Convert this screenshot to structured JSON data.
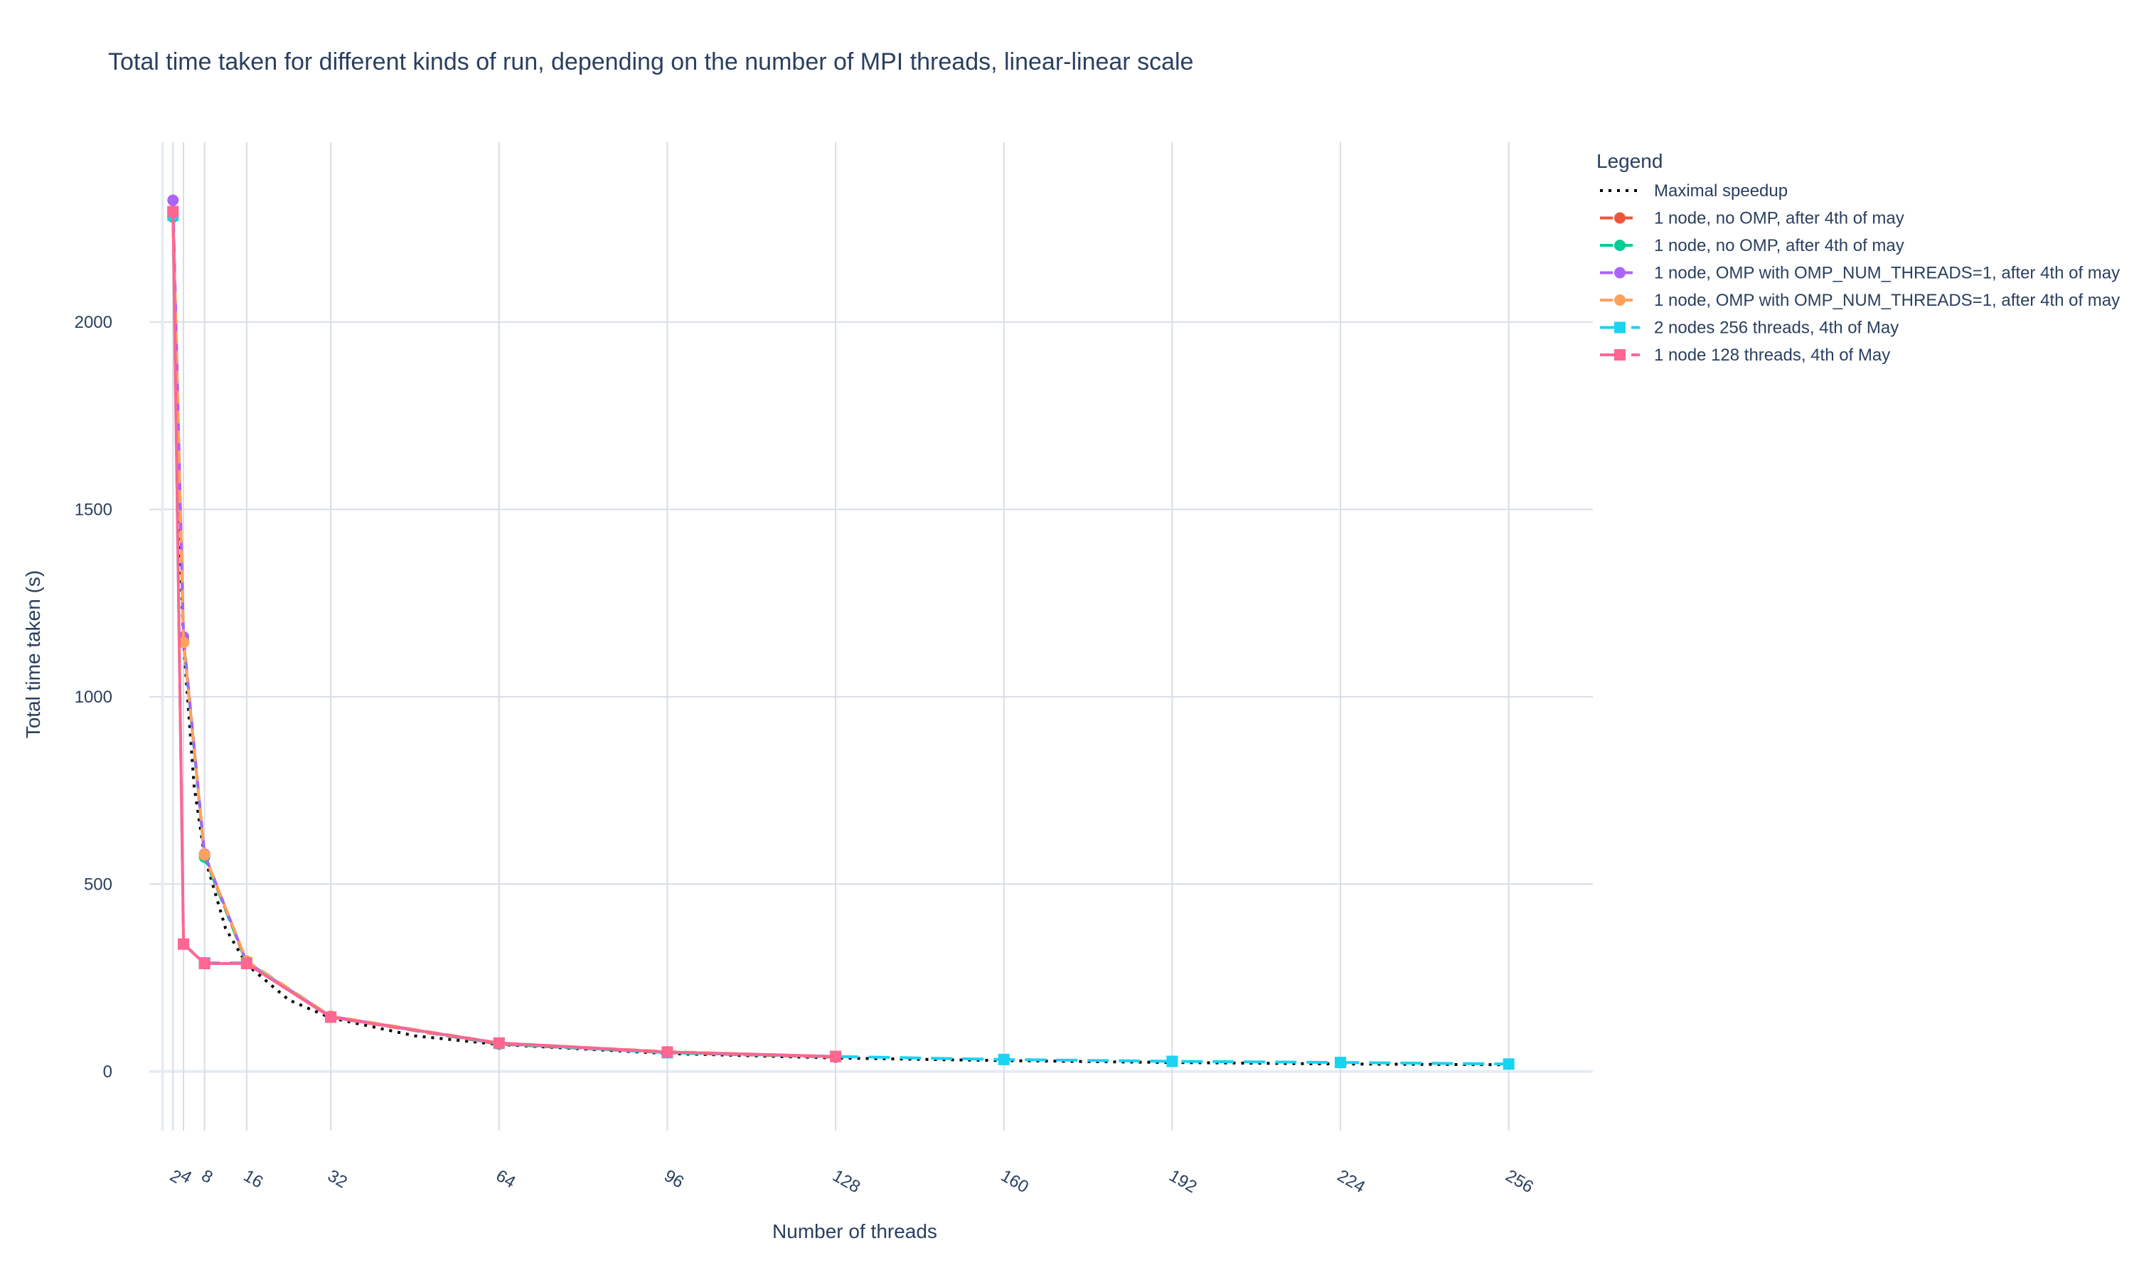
{
  "chart_data": {
    "type": "line",
    "title": "Total time taken for different kinds of run, depending on the number of MPI threads, linear-linear scale",
    "xlabel": "Number of threads",
    "ylabel": "Total time taken (s)",
    "x_ticks": [
      2,
      4,
      8,
      16,
      32,
      64,
      96,
      128,
      160,
      192,
      224,
      256
    ],
    "y_ticks": [
      0,
      500,
      1000,
      1500,
      2000
    ],
    "xlim": [
      -2.5,
      272
    ],
    "ylim": [
      -120,
      2480
    ],
    "grid": true,
    "legend_title": "Legend",
    "legend_position": "right",
    "series": [
      {
        "name": "Maximal speedup",
        "color": "#000000",
        "dash": "dot",
        "marker": "none",
        "x": [
          2,
          3,
          4,
          6,
          8,
          12,
          16,
          24,
          32,
          48,
          64,
          96,
          128,
          160,
          192,
          224,
          256
        ],
        "y": [
          2290,
          1527,
          1145,
          763,
          573,
          382,
          286,
          191,
          143,
          95,
          72,
          48,
          36,
          29,
          24,
          20,
          18
        ]
      },
      {
        "name": "1 node, no OMP, after 4th of may",
        "color": "#ef553b",
        "dash": "dash",
        "marker": "circle",
        "x": [
          2,
          4,
          8,
          16,
          32,
          64,
          96,
          128
        ],
        "y": [
          2290,
          1150,
          575,
          290,
          145,
          73,
          50,
          38
        ]
      },
      {
        "name": "1 node, no OMP, after 4th of may",
        "color": "#00cc96",
        "dash": "dash",
        "marker": "circle",
        "x": [
          2,
          4,
          8,
          16,
          32,
          64,
          96,
          128
        ],
        "y": [
          2280,
          1150,
          572,
          290,
          146,
          74,
          51,
          39
        ]
      },
      {
        "name": "1 node, OMP with OMP_NUM_THREADS=1, after 4th of may",
        "color": "#ab63fa",
        "dash": "dash",
        "marker": "circle",
        "x": [
          2,
          4,
          8,
          16,
          32,
          64,
          96,
          128
        ],
        "y": [
          2325,
          1160,
          580,
          292,
          147,
          75,
          52,
          40
        ]
      },
      {
        "name": "1 node, OMP with OMP_NUM_THREADS=1, after 4th of may",
        "color": "#ffa15a",
        "dash": "dash",
        "marker": "circle",
        "x": [
          2,
          4,
          8,
          16,
          32,
          64,
          96,
          128
        ],
        "y": [
          2295,
          1145,
          578,
          295,
          148,
          76,
          53,
          40
        ]
      },
      {
        "name": "2 nodes 256 threads, 4th of May",
        "color": "#19d3f3",
        "dash": "longdash",
        "marker": "square",
        "x": [
          2,
          4,
          8,
          16,
          32,
          64,
          96,
          128,
          160,
          192,
          224,
          256
        ],
        "y": [
          2285,
          340,
          290,
          290,
          145,
          75,
          50,
          40,
          32,
          27,
          24,
          20
        ]
      },
      {
        "name": "1 node 128 threads, 4th of May",
        "color": "#ff6692",
        "dash": "solid",
        "marker": "square",
        "x": [
          2,
          4,
          8,
          16,
          32,
          64,
          96,
          128
        ],
        "y": [
          2295,
          340,
          288,
          288,
          145,
          76,
          52,
          40
        ]
      }
    ]
  }
}
